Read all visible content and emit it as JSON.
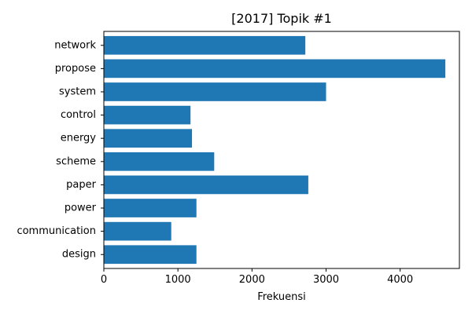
{
  "chart_data": {
    "type": "bar",
    "orientation": "horizontal",
    "title": "[2017] Topik #1",
    "xlabel": "Frekuensi",
    "ylabel": "",
    "categories": [
      "network",
      "propose",
      "system",
      "control",
      "energy",
      "scheme",
      "paper",
      "power",
      "communication",
      "design"
    ],
    "values": [
      2720,
      4610,
      3000,
      1170,
      1190,
      1490,
      2760,
      1250,
      910,
      1250
    ],
    "xlim": [
      0,
      4800
    ],
    "xticks": [
      0,
      1000,
      2000,
      3000,
      4000
    ],
    "grid": false,
    "legend": "none",
    "bar_color": "#1f77b4"
  }
}
